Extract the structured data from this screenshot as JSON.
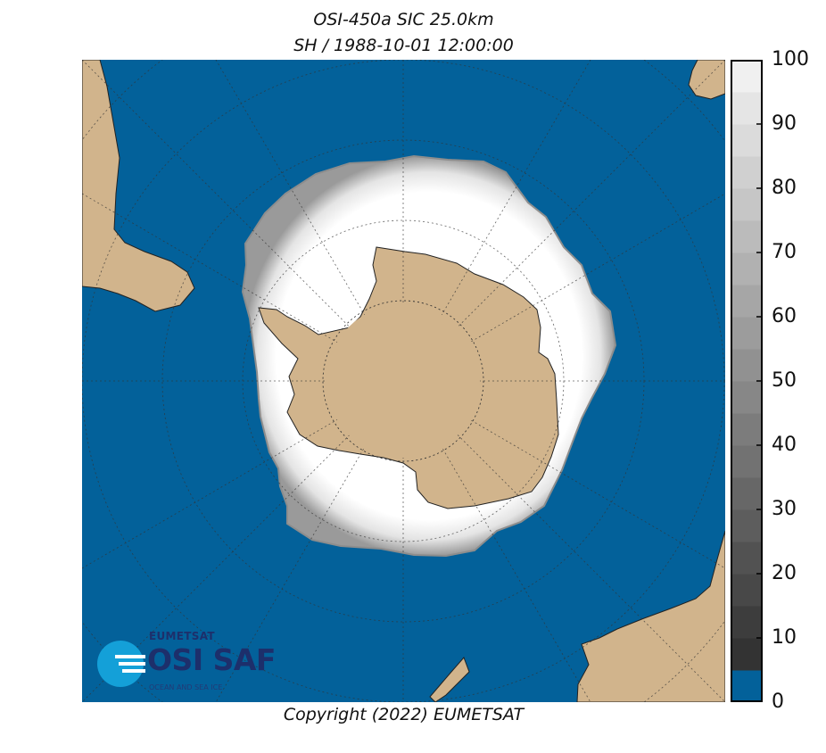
{
  "title": {
    "line1": "OSI-450a SIC 25.0km",
    "line2": "SH / 1988-10-01 12:00:00"
  },
  "copyright": "Copyright (2022)  EUMETSAT",
  "logo": {
    "top_text": "EUMETSAT",
    "main_text": "OSI SAF",
    "sub_text": "OCEAN AND SEA ICE"
  },
  "colorbar": {
    "min": 0,
    "max": 100,
    "step": 5,
    "tick_labels": [
      "0",
      "10",
      "20",
      "30",
      "40",
      "50",
      "60",
      "70",
      "80",
      "90",
      "100"
    ],
    "no_ice_color": "#03619a"
  },
  "colors": {
    "ocean": "#03619a",
    "land": "#d1b48c",
    "sea_ice": "#fbfbfb",
    "graticule": "#333333"
  },
  "map": {
    "projection": "polar stereographic (south)",
    "hemisphere": "SH"
  }
}
